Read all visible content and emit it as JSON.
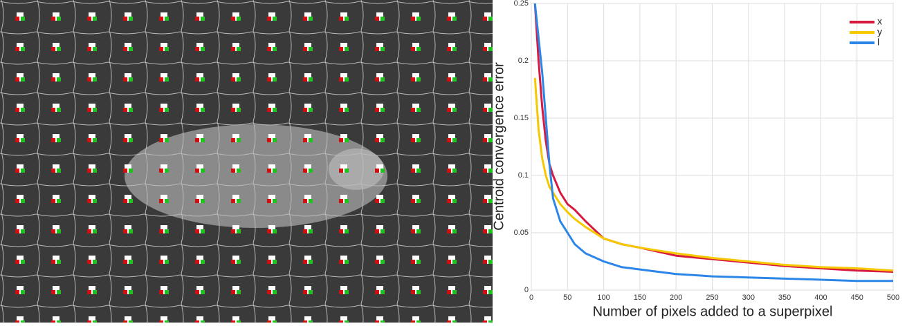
{
  "chart_data": {
    "type": "line",
    "xlabel": "Number of pixels added to a superpixel",
    "ylabel": "Centroid convergence error",
    "x": [
      5,
      10,
      15,
      20,
      25,
      30,
      40,
      50,
      60,
      75,
      100,
      125,
      150,
      200,
      250,
      300,
      350,
      400,
      450,
      500
    ],
    "series": [
      {
        "name": "x",
        "color": "#d7193f",
        "values": [
          0.25,
          0.2,
          0.16,
          0.13,
          0.11,
          0.1,
          0.085,
          0.075,
          0.07,
          0.06,
          0.045,
          0.04,
          0.037,
          0.03,
          0.027,
          0.024,
          0.021,
          0.019,
          0.017,
          0.016
        ]
      },
      {
        "name": "y",
        "color": "#f5c800",
        "values": [
          0.185,
          0.14,
          0.115,
          0.1,
          0.09,
          0.085,
          0.075,
          0.068,
          0.062,
          0.055,
          0.045,
          0.04,
          0.037,
          0.032,
          0.028,
          0.025,
          0.022,
          0.02,
          0.019,
          0.017
        ]
      },
      {
        "name": "l",
        "color": "#2b86e8",
        "values": [
          0.25,
          0.22,
          0.19,
          0.15,
          0.11,
          0.08,
          0.06,
          0.05,
          0.04,
          0.032,
          0.025,
          0.02,
          0.018,
          0.014,
          0.012,
          0.011,
          0.01,
          0.009,
          0.008,
          0.008
        ]
      }
    ],
    "xlim": [
      0,
      500
    ],
    "xticks": [
      0,
      50,
      100,
      150,
      200,
      250,
      300,
      350,
      400,
      450,
      500
    ],
    "ylim": [
      0,
      0.25
    ],
    "yticks": [
      0,
      0.05,
      0.1,
      0.15,
      0.2,
      0.25
    ],
    "grid": true,
    "legend": "top-right"
  }
}
